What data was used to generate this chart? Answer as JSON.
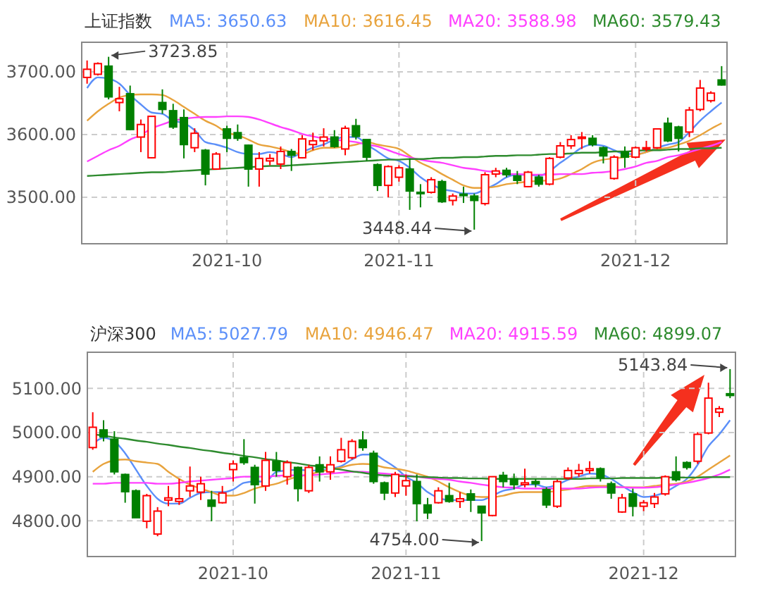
{
  "chart_data": [
    {
      "type": "candlestick",
      "title": "上证指数",
      "legend": "top",
      "grid": true,
      "categories": [
        null,
        null,
        null,
        null,
        null,
        null,
        null,
        null,
        null,
        null,
        null,
        null,
        null,
        "2021-10",
        null,
        null,
        null,
        null,
        null,
        null,
        null,
        null,
        null,
        null,
        null,
        null,
        null,
        null,
        null,
        "2021-11",
        null,
        null,
        null,
        null,
        null,
        null,
        null,
        null,
        null,
        null,
        null,
        null,
        null,
        null,
        null,
        null,
        null,
        null,
        null,
        null,
        null,
        "2021-12",
        null,
        null,
        null,
        null,
        null,
        null,
        null,
        null
      ],
      "ylim": [
        3426,
        3747
      ],
      "yticks": [
        {
          "value": 3500,
          "label": "3500.00"
        },
        {
          "value": 3600,
          "label": "3600.00"
        },
        {
          "value": 3700,
          "label": "3700.00"
        }
      ],
      "ohlc": [
        [
          3691,
          3718,
          3681,
          3704
        ],
        [
          3696,
          3715,
          3694,
          3713
        ],
        [
          3709,
          3723.85,
          3656,
          3660
        ],
        [
          3651,
          3676,
          3637,
          3657
        ],
        [
          3665,
          3678,
          3607,
          3608
        ],
        [
          3596,
          3624,
          3572,
          3616
        ],
        [
          3563,
          3629,
          3562,
          3629
        ],
        [
          3651,
          3672,
          3633,
          3640
        ],
        [
          3638,
          3649,
          3609,
          3612
        ],
        [
          3627,
          3640,
          3562,
          3584
        ],
        [
          3579,
          3610,
          3572,
          3602
        ],
        [
          3575,
          3577,
          3519,
          3537
        ],
        [
          3545,
          3572,
          3545,
          3569
        ],
        [
          3609,
          3614,
          3572,
          3594
        ],
        [
          3603,
          3616,
          3590,
          3594
        ],
        [
          3583,
          3584,
          3517,
          3545
        ],
        [
          3545,
          3572,
          3517,
          3562
        ],
        [
          3558,
          3569,
          3551,
          3562
        ],
        [
          3553,
          3581,
          3545,
          3573
        ],
        [
          3573,
          3577,
          3542,
          3567
        ],
        [
          3563,
          3599,
          3562,
          3593
        ],
        [
          3584,
          3603,
          3575,
          3590
        ],
        [
          3590,
          3610,
          3581,
          3596
        ],
        [
          3596,
          3607,
          3579,
          3581
        ],
        [
          3577,
          3614,
          3567,
          3610
        ],
        [
          3614,
          3625,
          3592,
          3597
        ],
        [
          3592,
          3592,
          3558,
          3564
        ],
        [
          3552,
          3554,
          3510,
          3519
        ],
        [
          3519,
          3551,
          3500,
          3549
        ],
        [
          3532,
          3551,
          3525,
          3547
        ],
        [
          3545,
          3562,
          3480,
          3510
        ],
        [
          3508,
          3521,
          3484,
          3506
        ],
        [
          3508,
          3532,
          3506,
          3528
        ],
        [
          3525,
          3528,
          3491,
          3493
        ],
        [
          3495,
          3506,
          3487,
          3502
        ],
        [
          3505,
          3517,
          3491,
          3504
        ],
        [
          3502,
          3506,
          3448.44,
          3495
        ],
        [
          3490,
          3540,
          3487,
          3536
        ],
        [
          3537,
          3547,
          3532,
          3542
        ],
        [
          3543,
          3547,
          3532,
          3536
        ],
        [
          3534,
          3542,
          3521,
          3527
        ],
        [
          3517,
          3542,
          3516,
          3540
        ],
        [
          3532,
          3536,
          3517,
          3521
        ],
        [
          3521,
          3564,
          3519,
          3562
        ],
        [
          3564,
          3588,
          3562,
          3582
        ],
        [
          3582,
          3599,
          3577,
          3592
        ],
        [
          3594,
          3604,
          3577,
          3596
        ],
        [
          3594,
          3599,
          3581,
          3584
        ],
        [
          3579,
          3581,
          3554,
          3566
        ],
        [
          3530,
          3567,
          3528,
          3564
        ],
        [
          3572,
          3581,
          3547,
          3564
        ],
        [
          3564,
          3581,
          3562,
          3579
        ],
        [
          3577,
          3590,
          3573,
          3579
        ],
        [
          3579,
          3610,
          3577,
          3609
        ],
        [
          3618,
          3627,
          3588,
          3590
        ],
        [
          3612,
          3614,
          3573,
          3594
        ],
        [
          3604,
          3644,
          3596,
          3639
        ],
        [
          3640,
          3687,
          3637,
          3674
        ],
        [
          3654,
          3669,
          3651,
          3666
        ],
        [
          3687,
          3709,
          3678,
          3679
        ]
      ],
      "colors": [
        "#ff0000",
        "#ff0000",
        "#008000",
        "#ff0000",
        "#008000",
        "#ff0000",
        "#ff0000",
        "#008000",
        "#008000",
        "#008000",
        "#ff0000",
        "#008000",
        "#ff0000",
        "#008000",
        "#008000",
        "#008000",
        "#ff0000",
        "#ff0000",
        "#ff0000",
        "#008000",
        "#ff0000",
        "#ff0000",
        "#ff0000",
        "#008000",
        "#ff0000",
        "#008000",
        "#008000",
        "#008000",
        "#ff0000",
        "#ff0000",
        "#008000",
        "#008000",
        "#ff0000",
        "#008000",
        "#ff0000",
        "#008000",
        "#008000",
        "#ff0000",
        "#ff0000",
        "#008000",
        "#008000",
        "#ff0000",
        "#008000",
        "#ff0000",
        "#ff0000",
        "#ff0000",
        "#ff0000",
        "#008000",
        "#008000",
        "#ff0000",
        "#008000",
        "#ff0000",
        "#ff0000",
        "#ff0000",
        "#008000",
        "#008000",
        "#ff0000",
        "#ff0000",
        "#ff0000",
        "#008000"
      ],
      "series": [
        {
          "type": "line",
          "name": "MA5: 3650.63",
          "color": "#5b8ff9",
          "values": [
            3674,
            3691,
            3689,
            3681,
            3663,
            3648,
            3635,
            3633,
            3622,
            3618,
            3607,
            3588,
            3584,
            3579,
            3572,
            3569,
            3569,
            3572,
            3569,
            3564,
            3572,
            3579,
            3584,
            3592,
            3596,
            3596,
            3584,
            3573,
            3562,
            3558,
            3547,
            3532,
            3521,
            3513,
            3510,
            3506,
            3506,
            3513,
            3521,
            3532,
            3536,
            3536,
            3534,
            3542,
            3555,
            3567,
            3579,
            3584,
            3582,
            3575,
            3569,
            3569,
            3572,
            3579,
            3584,
            3588,
            3604,
            3622,
            3637,
            3651
          ]
        },
        {
          "type": "line",
          "name": "MA10: 3616.45",
          "color": "#e8a33d",
          "values": [
            3622,
            3637,
            3649,
            3659,
            3663,
            3664,
            3664,
            3663,
            3655,
            3644,
            3633,
            3622,
            3614,
            3603,
            3599,
            3592,
            3584,
            3581,
            3577,
            3572,
            3569,
            3575,
            3579,
            3579,
            3581,
            3584,
            3588,
            3584,
            3581,
            3577,
            3566,
            3555,
            3547,
            3537,
            3528,
            3519,
            3515,
            3515,
            3517,
            3521,
            3523,
            3525,
            3526,
            3527,
            3530,
            3537,
            3545,
            3555,
            3560,
            3562,
            3564,
            3567,
            3572,
            3577,
            3579,
            3584,
            3590,
            3599,
            3609,
            3618
          ]
        },
        {
          "type": "line",
          "name": "MA20: 3588.98",
          "color": "#ff40ff",
          "values": [
            3557,
            3566,
            3575,
            3582,
            3592,
            3599,
            3610,
            3616,
            3622,
            3625,
            3627,
            3628,
            3628,
            3629,
            3629,
            3628,
            3624,
            3618,
            3612,
            3607,
            3601,
            3597,
            3594,
            3592,
            3590,
            3588,
            3584,
            3581,
            3575,
            3569,
            3564,
            3560,
            3557,
            3555,
            3551,
            3547,
            3545,
            3542,
            3540,
            3537,
            3537,
            3536,
            3536,
            3536,
            3537,
            3537,
            3537,
            3539,
            3540,
            3542,
            3545,
            3549,
            3555,
            3558,
            3564,
            3567,
            3572,
            3577,
            3582,
            3588
          ]
        },
        {
          "type": "line",
          "name": "MA60: 3579.43",
          "color": "#2e8b2e",
          "values": [
            3534,
            3535,
            3536,
            3537,
            3538,
            3539,
            3540,
            3540,
            3541,
            3542,
            3543,
            3544,
            3545,
            3546,
            3547,
            3548,
            3549,
            3550,
            3550,
            3551,
            3552,
            3553,
            3554,
            3555,
            3556,
            3557,
            3558,
            3559,
            3560,
            3560,
            3561,
            3561,
            3562,
            3563,
            3563,
            3564,
            3564,
            3565,
            3566,
            3566,
            3567,
            3567,
            3568,
            3569,
            3569,
            3570,
            3571,
            3571,
            3572,
            3573,
            3573,
            3574,
            3575,
            3575,
            3576,
            3577,
            3577,
            3578,
            3578,
            3579
          ]
        }
      ],
      "annotations": [
        "3723.85",
        "3448.44"
      ]
    },
    {
      "type": "candlestick",
      "title": "沪深300",
      "legend": "top",
      "grid": true,
      "categories": [
        null,
        null,
        null,
        null,
        null,
        null,
        null,
        null,
        null,
        null,
        null,
        null,
        null,
        "2021-10",
        null,
        null,
        null,
        null,
        null,
        null,
        null,
        null,
        null,
        null,
        null,
        null,
        null,
        null,
        null,
        "2021-11",
        null,
        null,
        null,
        null,
        null,
        null,
        null,
        null,
        null,
        null,
        null,
        null,
        null,
        null,
        null,
        null,
        null,
        null,
        null,
        null,
        null,
        "2021-12",
        null,
        null,
        null,
        null,
        null,
        null,
        null,
        null
      ],
      "ylim": [
        4719,
        5182
      ],
      "yticks": [
        {
          "value": 4800,
          "label": "4800.00"
        },
        {
          "value": 4900,
          "label": "4900.00"
        },
        {
          "value": 5000,
          "label": "5000.00"
        },
        {
          "value": 5100,
          "label": "5100.00"
        }
      ],
      "ohlc": [
        [
          4966,
          5046,
          4961,
          5012
        ],
        [
          5006,
          5028,
          4980,
          4990
        ],
        [
          4985,
          5003,
          4905,
          4911
        ],
        [
          4905,
          4907,
          4841,
          4866
        ],
        [
          4868,
          4871,
          4807,
          4807
        ],
        [
          4799,
          4861,
          4783,
          4857
        ],
        [
          4770,
          4831,
          4765,
          4822
        ],
        [
          4847,
          4879,
          4833,
          4852
        ],
        [
          4844,
          4895,
          4836,
          4850
        ],
        [
          4868,
          4923,
          4854,
          4879
        ],
        [
          4865,
          4900,
          4847,
          4884
        ],
        [
          4847,
          4868,
          4799,
          4833
        ],
        [
          4841,
          4879,
          4839,
          4863
        ],
        [
          4916,
          4937,
          4889,
          4929
        ],
        [
          4943,
          4985,
          4927,
          4932
        ],
        [
          4921,
          4927,
          4839,
          4882
        ],
        [
          4879,
          4956,
          4868,
          4937
        ],
        [
          4935,
          4956,
          4900,
          4914
        ],
        [
          4900,
          4937,
          4882,
          4932
        ],
        [
          4921,
          4923,
          4844,
          4873
        ],
        [
          4868,
          4927,
          4863,
          4921
        ],
        [
          4927,
          4946,
          4889,
          4911
        ],
        [
          4911,
          4946,
          4893,
          4927
        ],
        [
          4935,
          4988,
          4932,
          4961
        ],
        [
          4943,
          4985,
          4939,
          4980
        ],
        [
          4983,
          5003,
          4959,
          4966
        ],
        [
          4953,
          4959,
          4884,
          4889
        ],
        [
          4886,
          4889,
          4847,
          4863
        ],
        [
          4863,
          4911,
          4854,
          4905
        ],
        [
          4879,
          4905,
          4857,
          4891
        ],
        [
          4889,
          4905,
          4799,
          4839
        ],
        [
          4836,
          4852,
          4804,
          4818
        ],
        [
          4841,
          4876,
          4839,
          4868
        ],
        [
          4857,
          4886,
          4841,
          4844
        ],
        [
          4844,
          4865,
          4829,
          4850
        ],
        [
          4861,
          4871,
          4820,
          4847
        ],
        [
          4833,
          4833,
          4754.0,
          4818
        ],
        [
          4812,
          4900,
          4810,
          4900
        ],
        [
          4903,
          4911,
          4876,
          4889
        ],
        [
          4895,
          4907,
          4871,
          4882
        ],
        [
          4882,
          4918,
          4876,
          4886
        ],
        [
          4889,
          4895,
          4876,
          4884
        ],
        [
          4871,
          4876,
          4829,
          4836
        ],
        [
          4833,
          4893,
          4829,
          4889
        ],
        [
          4897,
          4921,
          4893,
          4914
        ],
        [
          4907,
          4929,
          4900,
          4914
        ],
        [
          4914,
          4935,
          4907,
          4918
        ],
        [
          4918,
          4921,
          4889,
          4897
        ],
        [
          4884,
          4889,
          4850,
          4863
        ],
        [
          4820,
          4861,
          4818,
          4852
        ],
        [
          4861,
          4873,
          4810,
          4833
        ],
        [
          4833,
          4847,
          4822,
          4841
        ],
        [
          4839,
          4863,
          4829,
          4854
        ],
        [
          4861,
          4903,
          4857,
          4900
        ],
        [
          4911,
          4946,
          4889,
          4893
        ],
        [
          4932,
          4935,
          4916,
          4921
        ],
        [
          4935,
          5001,
          4929,
          4996
        ],
        [
          4999,
          5113,
          4996,
          5078
        ],
        [
          5046,
          5060,
          5035,
          5054
        ],
        [
          5088,
          5143.84,
          5078,
          5084
        ]
      ],
      "colors": [
        "#ff0000",
        "#008000",
        "#008000",
        "#008000",
        "#008000",
        "#ff0000",
        "#ff0000",
        "#ff0000",
        "#ff0000",
        "#ff0000",
        "#ff0000",
        "#008000",
        "#ff0000",
        "#ff0000",
        "#008000",
        "#008000",
        "#ff0000",
        "#008000",
        "#ff0000",
        "#008000",
        "#ff0000",
        "#008000",
        "#ff0000",
        "#ff0000",
        "#ff0000",
        "#008000",
        "#008000",
        "#008000",
        "#ff0000",
        "#ff0000",
        "#008000",
        "#008000",
        "#ff0000",
        "#008000",
        "#ff0000",
        "#008000",
        "#008000",
        "#ff0000",
        "#008000",
        "#008000",
        "#ff0000",
        "#008000",
        "#008000",
        "#ff0000",
        "#ff0000",
        "#ff0000",
        "#ff0000",
        "#008000",
        "#008000",
        "#ff0000",
        "#008000",
        "#ff0000",
        "#ff0000",
        "#ff0000",
        "#008000",
        "#008000",
        "#ff0000",
        "#ff0000",
        "#ff0000",
        "#008000"
      ],
      "series": [
        {
          "type": "line",
          "name": "MA5: 5027.79",
          "color": "#5b8ff9",
          "values": [
            4974,
            4988,
            4980,
            4953,
            4916,
            4879,
            4850,
            4839,
            4839,
            4852,
            4863,
            4865,
            4865,
            4871,
            4886,
            4889,
            4889,
            4911,
            4914,
            4916,
            4914,
            4914,
            4918,
            4924,
            4939,
            4950,
            4950,
            4937,
            4921,
            4900,
            4886,
            4865,
            4852,
            4847,
            4847,
            4847,
            4847,
            4857,
            4868,
            4873,
            4882,
            4882,
            4876,
            4882,
            4893,
            4900,
            4907,
            4905,
            4895,
            4879,
            4865,
            4854,
            4857,
            4865,
            4879,
            4895,
            4927,
            4969,
            4996,
            5028
          ]
        },
        {
          "type": "line",
          "name": "MA10: 4946.47",
          "color": "#e8a33d",
          "values": [
            4911,
            4929,
            4937,
            4939,
            4935,
            4932,
            4929,
            4911,
            4895,
            4882,
            4873,
            4865,
            4857,
            4857,
            4863,
            4873,
            4879,
            4884,
            4893,
            4900,
            4905,
            4911,
            4916,
            4921,
            4927,
            4929,
            4927,
            4921,
            4918,
            4914,
            4907,
            4900,
            4889,
            4876,
            4865,
            4857,
            4854,
            4854,
            4857,
            4863,
            4865,
            4865,
            4865,
            4868,
            4871,
            4876,
            4879,
            4879,
            4879,
            4876,
            4876,
            4876,
            4879,
            4882,
            4884,
            4889,
            4900,
            4916,
            4932,
            4948
          ]
        },
        {
          "type": "line",
          "name": "MA20: 4915.59",
          "color": "#ff40ff",
          "values": [
            4884,
            4884,
            4886,
            4886,
            4886,
            4886,
            4884,
            4884,
            4886,
            4889,
            4891,
            4893,
            4895,
            4897,
            4900,
            4900,
            4900,
            4902,
            4903,
            4903,
            4903,
            4905,
            4907,
            4909,
            4911,
            4911,
            4909,
            4907,
            4905,
            4903,
            4900,
            4897,
            4895,
            4893,
            4889,
            4886,
            4882,
            4879,
            4876,
            4875,
            4873,
            4873,
            4873,
            4873,
            4873,
            4873,
            4875,
            4876,
            4876,
            4876,
            4875,
            4875,
            4876,
            4879,
            4882,
            4886,
            4891,
            4897,
            4905,
            4916
          ]
        },
        {
          "type": "line",
          "name": "MA60: 4899.07",
          "color": "#2e8b2e",
          "values": [
            4996,
            4993,
            4989,
            4986,
            4982,
            4979,
            4975,
            4972,
            4968,
            4965,
            4961,
            4958,
            4954,
            4951,
            4947,
            4944,
            4940,
            4937,
            4933,
            4930,
            4926,
            4923,
            4919,
            4916,
            4912,
            4909,
            4905,
            4903,
            4902,
            4901,
            4900,
            4899,
            4898,
            4897,
            4897,
            4896,
            4896,
            4895,
            4895,
            4895,
            4895,
            4895,
            4895,
            4895,
            4895,
            4895,
            4896,
            4896,
            4896,
            4897,
            4897,
            4897,
            4897,
            4898,
            4898,
            4898,
            4898,
            4899,
            4899,
            4899
          ]
        }
      ],
      "annotations": [
        "5143.84",
        "4754.00"
      ]
    }
  ]
}
